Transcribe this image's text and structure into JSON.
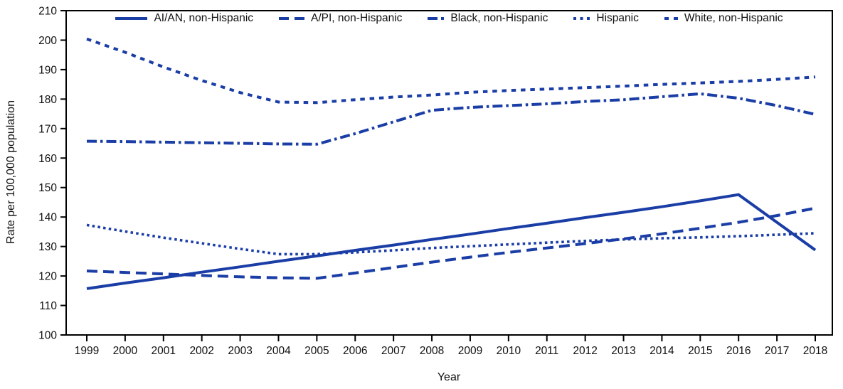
{
  "figure": {
    "background_color": "#ffffff",
    "line_color": "#1a3da6",
    "axis_color": "#000000",
    "text_color": "#111111"
  },
  "chart_data": {
    "type": "line",
    "title": "",
    "xlabel": "Year",
    "ylabel": "Rate per 100,000 population",
    "ylim": [
      100,
      210
    ],
    "ytick_step": 10,
    "grid": false,
    "legend_position": "top-inside-horizontal",
    "x": [
      1999,
      2000,
      2001,
      2002,
      2003,
      2004,
      2005,
      2006,
      2007,
      2008,
      2009,
      2010,
      2011,
      2012,
      2013,
      2014,
      2015,
      2016,
      2017,
      2018
    ],
    "series": [
      {
        "name": "AI/AN, non-Hispanic",
        "style": "solid",
        "values": [
          115.7,
          117.6,
          119.4,
          121.3,
          123.1,
          125.0,
          126.8,
          128.7,
          130.5,
          132.4,
          134.2,
          136.1,
          137.9,
          139.8,
          141.6,
          143.5,
          145.5,
          147.6,
          138.2,
          128.8
        ]
      },
      {
        "name": "A/PI, non-Hispanic",
        "style": "long-dash",
        "values": [
          121.7,
          121.2,
          120.7,
          120.2,
          119.7,
          119.4,
          119.2,
          121.0,
          122.9,
          124.7,
          126.4,
          128.0,
          129.5,
          131.0,
          132.6,
          134.3,
          136.2,
          138.2,
          140.5,
          143.0
        ]
      },
      {
        "name": "Black, non-Hispanic",
        "style": "dash-dot",
        "values": [
          165.7,
          165.6,
          165.4,
          165.2,
          165.0,
          164.8,
          164.7,
          168.3,
          172.3,
          176.2,
          177.2,
          177.8,
          178.4,
          179.2,
          179.8,
          180.8,
          181.8,
          180.3,
          177.8,
          174.8
        ]
      },
      {
        "name": "Hispanic",
        "style": "dot",
        "values": [
          137.3,
          135.1,
          133.0,
          131.1,
          129.2,
          127.4,
          127.4,
          128.0,
          128.7,
          129.5,
          130.1,
          130.7,
          131.3,
          131.9,
          132.4,
          132.8,
          133.1,
          133.5,
          134.0,
          134.5
        ]
      },
      {
        "name": "White, non-Hispanic",
        "style": "square-dash",
        "values": [
          200.4,
          195.9,
          190.9,
          186.3,
          182.2,
          179.0,
          178.8,
          179.8,
          180.7,
          181.4,
          182.3,
          182.9,
          183.4,
          183.9,
          184.4,
          185.0,
          185.5,
          186.0,
          186.7,
          187.5
        ]
      }
    ]
  }
}
